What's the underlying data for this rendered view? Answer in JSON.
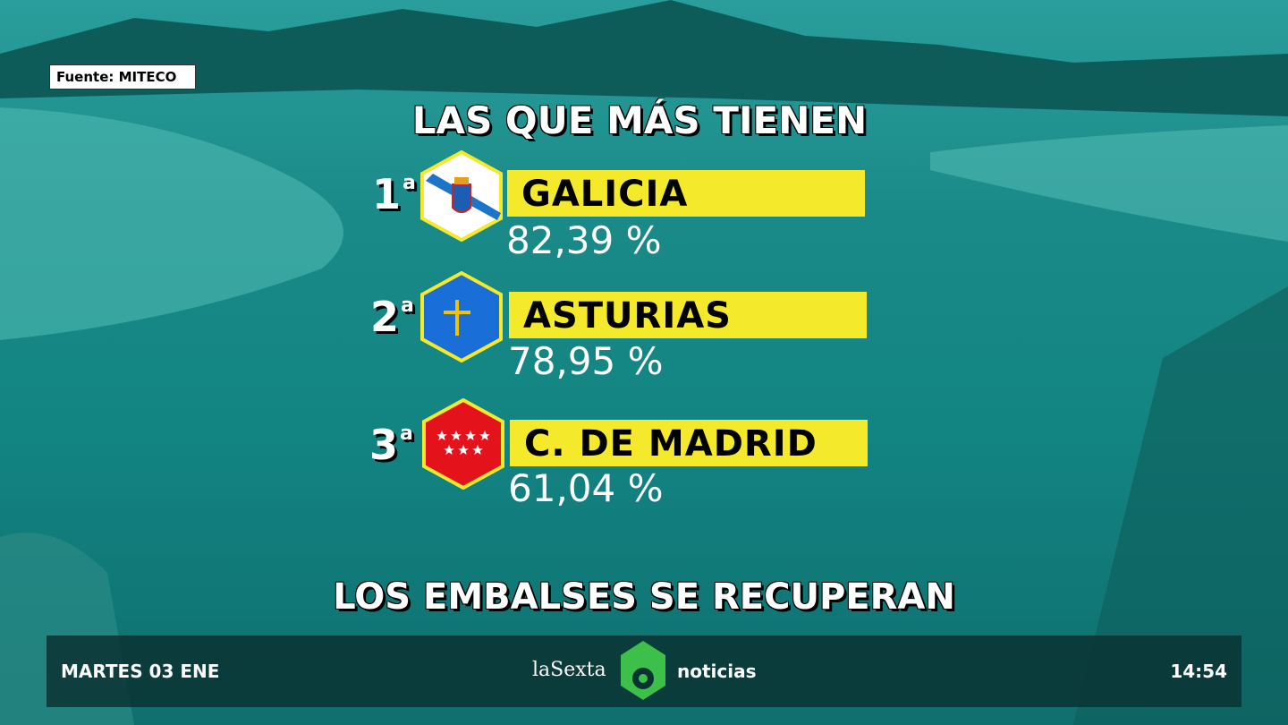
{
  "source": "Fuente: MITECO",
  "title": "LAS QUE MÁS TIENEN",
  "items": [
    {
      "rank": "1",
      "rank_suffix": "a",
      "region": "GALICIA",
      "value": "82,39 %"
    },
    {
      "rank": "2",
      "rank_suffix": "a",
      "region": "ASTURIAS",
      "value": "78,95 %"
    },
    {
      "rank": "3",
      "rank_suffix": "a",
      "region": "C. DE MADRID",
      "value": "61,04 %"
    }
  ],
  "headline": "LOS EMBALSES SE RECUPERAN",
  "footer": {
    "date": "MARTES 03 ENE",
    "brand_left": "laSexta",
    "brand_right": "noticias",
    "time": "14:54"
  }
}
